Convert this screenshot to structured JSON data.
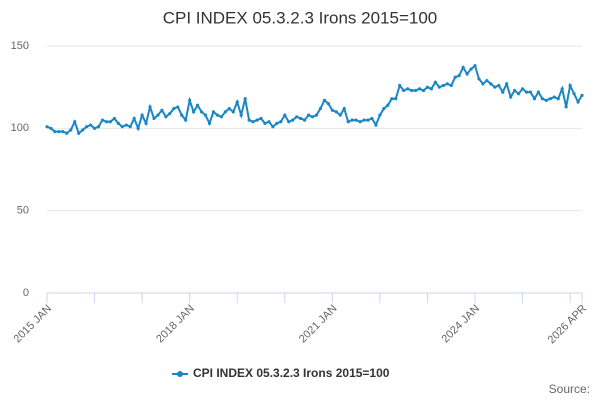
{
  "chart_data": {
    "type": "line",
    "title": "CPI INDEX 05.3.2.3 Irons 2015=100",
    "source": "Source:",
    "categories": [
      "2015 JAN",
      null,
      null,
      null,
      null,
      null,
      null,
      null,
      null,
      null,
      null,
      null,
      null,
      null,
      null,
      null,
      null,
      null,
      null,
      null,
      null,
      null,
      null,
      null,
      null,
      null,
      null,
      null,
      null,
      null,
      null,
      null,
      null,
      null,
      null,
      null,
      "2018 JAN",
      null,
      null,
      null,
      null,
      null,
      null,
      null,
      null,
      null,
      null,
      null,
      null,
      null,
      null,
      null,
      null,
      null,
      null,
      null,
      null,
      null,
      null,
      null,
      null,
      null,
      null,
      null,
      null,
      null,
      null,
      null,
      null,
      null,
      null,
      null,
      "2021 JAN",
      null,
      null,
      null,
      null,
      null,
      null,
      null,
      null,
      null,
      null,
      null,
      null,
      null,
      null,
      null,
      null,
      null,
      null,
      null,
      null,
      null,
      null,
      null,
      null,
      null,
      null,
      null,
      null,
      null,
      null,
      null,
      null,
      null,
      null,
      null,
      "2024 JAN",
      null,
      null,
      null,
      null,
      null,
      null,
      null,
      null,
      null,
      null,
      null,
      null,
      null,
      null,
      null,
      null,
      null,
      null,
      null,
      null,
      null,
      null,
      null,
      null,
      null,
      null,
      "2026 APR"
    ],
    "series": [
      {
        "name": "CPI INDEX 05.3.2.3 Irons 2015=100",
        "color": "#1a87c4",
        "values": [
          101,
          100,
          98,
          98,
          98,
          97,
          99,
          104,
          97,
          99,
          101,
          102,
          100,
          101,
          105,
          104,
          104,
          106,
          103,
          101,
          102,
          101,
          106,
          100,
          108,
          103,
          113,
          106,
          108,
          111,
          107,
          109,
          112,
          113,
          108,
          105,
          117,
          110,
          114,
          110,
          108,
          103,
          110,
          108,
          107,
          110,
          112,
          110,
          116,
          108,
          118,
          105,
          104,
          105,
          106,
          103,
          104,
          101,
          103,
          104,
          108,
          104,
          105,
          107,
          106,
          105,
          108,
          107,
          108,
          112,
          117,
          115,
          111,
          110,
          108,
          112,
          104,
          105,
          105,
          104,
          105,
          105,
          106,
          102,
          108,
          112,
          114,
          118,
          118,
          126,
          123,
          124,
          123,
          123,
          124,
          123,
          125,
          124,
          128,
          125,
          126,
          127,
          126,
          131,
          132,
          137,
          133,
          136,
          138,
          130,
          127,
          129,
          127,
          125,
          126,
          122,
          127,
          119,
          123,
          121,
          124,
          122,
          122,
          118,
          122,
          118,
          117,
          118,
          119,
          118,
          124,
          113,
          126,
          121,
          116,
          120
        ]
      }
    ],
    "ylim": [
      0,
      150
    ],
    "yticks": [
      0,
      50,
      100,
      150
    ],
    "grid": true
  }
}
